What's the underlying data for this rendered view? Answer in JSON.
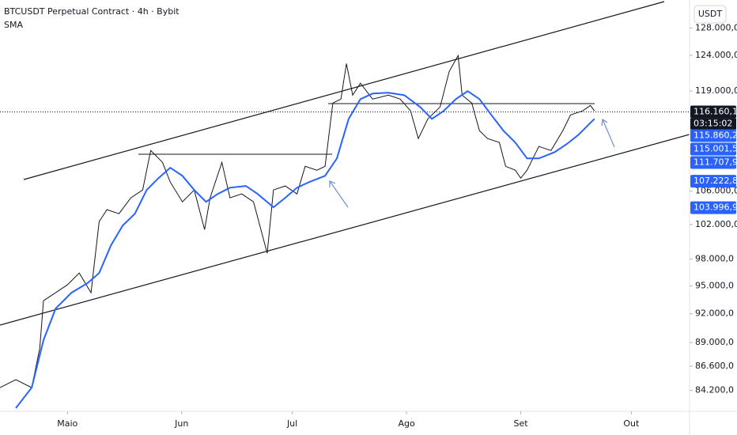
{
  "chart_data": {
    "type": "line",
    "title": "BTCUSDT Perpetual Contract · 4h · Bybit",
    "subtitle": "SMA",
    "currency": "USDT",
    "countdown": "03:15:02",
    "log_scale": true,
    "xlim": [
      102.7,
      289.8
    ],
    "xticks": [
      {
        "value": 121,
        "label": "Maio"
      },
      {
        "value": 152,
        "label": "Jun"
      },
      {
        "value": 182,
        "label": "Jul"
      },
      {
        "value": 213,
        "label": "Ago"
      },
      {
        "value": 244,
        "label": "Set"
      },
      {
        "value": 274,
        "label": "Out"
      }
    ],
    "ylim": [
      82200,
      132200
    ],
    "yticks": [
      {
        "value": 128000,
        "label": "128.000,0"
      },
      {
        "value": 124000,
        "label": "124.000,0"
      },
      {
        "value": 119000,
        "label": "119.000,0"
      },
      {
        "value": 106000,
        "label": "106.000,0"
      },
      {
        "value": 102000,
        "label": "102.000,0"
      },
      {
        "value": 98000,
        "label": "98.000,0"
      },
      {
        "value": 95000,
        "label": "95.000,0"
      },
      {
        "value": 92000,
        "label": "92.000,0"
      },
      {
        "value": 89000,
        "label": "89.000,0"
      },
      {
        "value": 86600,
        "label": "86.600,0"
      },
      {
        "value": 84200,
        "label": "84.200,0"
      }
    ],
    "series": [
      {
        "color": "#131722",
        "x": [
          102.7,
          107.0,
          111.3,
          113.5,
          114.5,
          117.8,
          121.0,
          124.2,
          127.4,
          129.6,
          131.7,
          135.0,
          138.2,
          141.4,
          143.6,
          146.8,
          148.9,
          152.2,
          155.4,
          158.2,
          159.7,
          162.9,
          165.1,
          168.3,
          171.5,
          175.2,
          176.9,
          180.1,
          183.3,
          185.5,
          188.7,
          190.9,
          193.0,
          195.2,
          196.7,
          198.4,
          200.5,
          203.8,
          208.1,
          211.3,
          214.1,
          216.2,
          218.8,
          222.1,
          224.6,
          227.0,
          228.1,
          230.7,
          232.8,
          235.0,
          238.2,
          239.9,
          242.5,
          244.0,
          245.7,
          248.9,
          252.2,
          255.4,
          257.5,
          260.8,
          262.9,
          264.0
        ],
        "values": [
          84480,
          85260,
          84480,
          88420,
          93400,
          94270,
          95130,
          96440,
          94270,
          102340,
          103760,
          103280,
          105190,
          106150,
          111100,
          109590,
          107120,
          104700,
          106150,
          101400,
          105190,
          109590,
          105190,
          105660,
          104700,
          98660,
          106150,
          106640,
          105660,
          109090,
          108600,
          109090,
          117360,
          117900,
          122840,
          118440,
          120080,
          117900,
          118440,
          117900,
          116300,
          112640,
          115240,
          116830,
          121730,
          123970,
          118440,
          117360,
          113680,
          112640,
          112130,
          109090,
          108600,
          107610,
          108600,
          111620,
          111100,
          113680,
          115760,
          116300,
          117040,
          116300
        ]
      },
      {
        "color": "#2962ff",
        "x": [
          107.0,
          111.3,
          114.5,
          117.8,
          122.1,
          126.4,
          129.6,
          132.8,
          136.0,
          139.3,
          142.5,
          145.7,
          148.9,
          152.2,
          155.4,
          158.6,
          161.8,
          165.1,
          169.4,
          172.6,
          176.9,
          180.1,
          183.3,
          186.6,
          190.9,
          194.1,
          197.3,
          200.5,
          203.8,
          208.1,
          212.4,
          216.7,
          219.9,
          223.1,
          226.4,
          229.6,
          232.8,
          236.0,
          239.3,
          242.5,
          245.7,
          248.9,
          253.2,
          256.5,
          259.7,
          262.9,
          264.0
        ],
        "values": [
          82500,
          84480,
          89240,
          92560,
          94270,
          95310,
          96440,
          99570,
          101880,
          103280,
          106150,
          107610,
          108910,
          107900,
          106150,
          104700,
          105660,
          106430,
          106640,
          105660,
          104040,
          105190,
          106430,
          107120,
          107900,
          110090,
          115240,
          117900,
          118650,
          118760,
          118440,
          116830,
          115240,
          116300,
          117900,
          118990,
          117900,
          115760,
          113680,
          112130,
          110090,
          110090,
          110900,
          111930,
          113150,
          114710,
          115240
        ]
      }
    ],
    "price_tags": [
      {
        "value": 116160.1,
        "label": "116.160,1",
        "color": "#131722"
      },
      {
        "value": 115860.2,
        "label": "115.860,2",
        "color": "#2962ff"
      },
      {
        "value": 115001.5,
        "label": "115.001,5",
        "color": "#2962ff"
      },
      {
        "value": 111707.9,
        "label": "111.707,9",
        "color": "#2962ff"
      },
      {
        "value": 107222.8,
        "label": "107.222,8",
        "color": "#2962ff"
      },
      {
        "value": 103996.9,
        "label": "103.996,9",
        "color": "#2962ff"
      }
    ]
  }
}
